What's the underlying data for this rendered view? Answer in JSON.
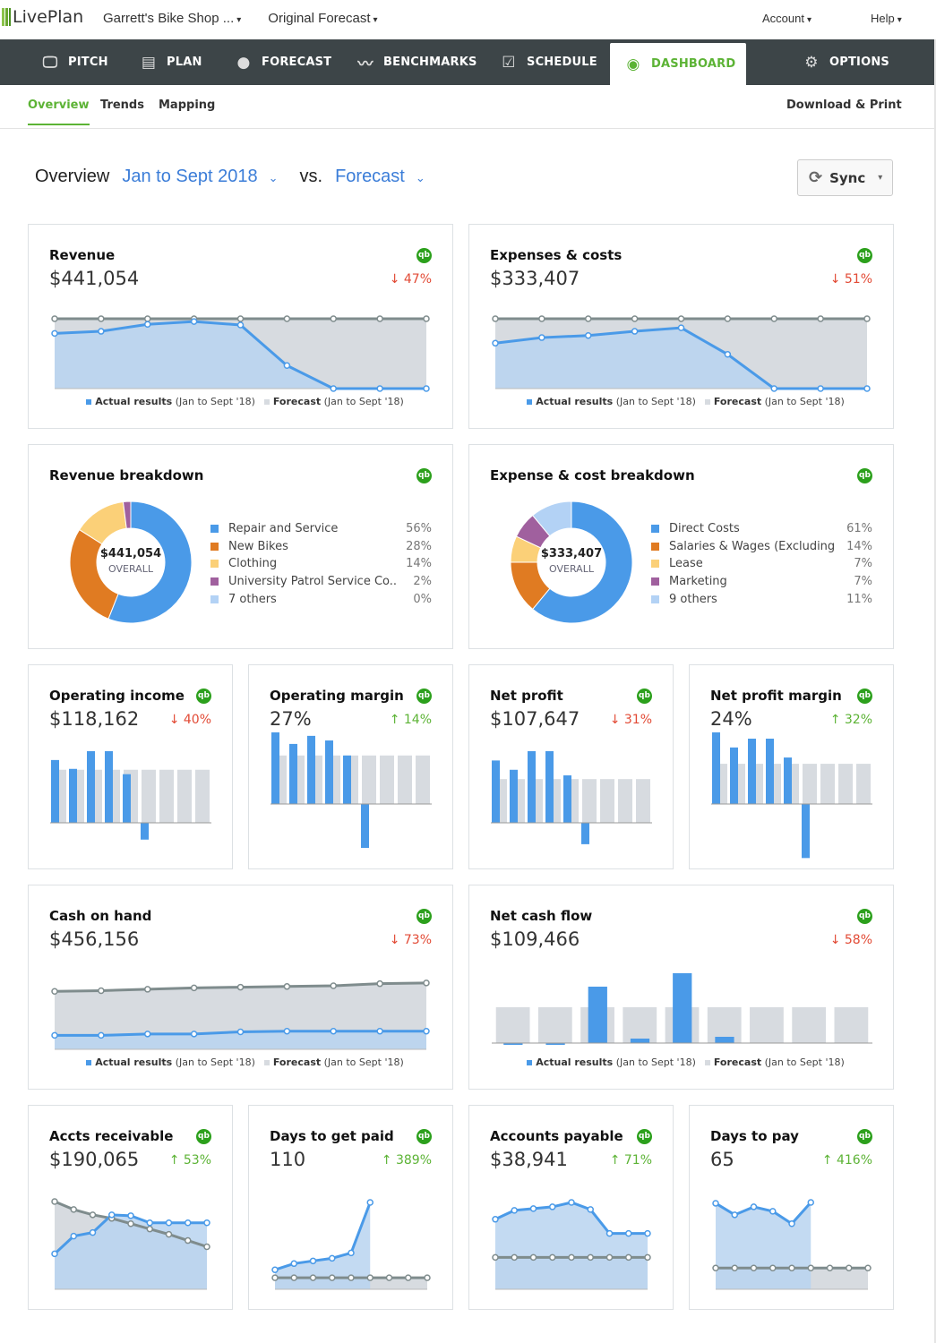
{
  "brand": "LivePlan",
  "topbar": {
    "company": "Garrett's Bike Shop ...",
    "forecast": "Original Forecast",
    "account": "Account",
    "help": "Help"
  },
  "nav": [
    {
      "label": "PITCH",
      "icon": "monitor-icon",
      "glyph": "🖵"
    },
    {
      "label": "PLAN",
      "icon": "document-icon",
      "glyph": "▤"
    },
    {
      "label": "FORECAST",
      "icon": "piggy-bank-icon",
      "glyph": "●"
    },
    {
      "label": "BENCHMARKS",
      "icon": "trend-icon",
      "glyph": "〰"
    },
    {
      "label": "SCHEDULE",
      "icon": "checkbox-icon",
      "glyph": "☑"
    },
    {
      "label": "DASHBOARD",
      "icon": "dashboard-icon",
      "glyph": "◉",
      "active": true
    },
    {
      "label": "OPTIONS",
      "icon": "gear-icon",
      "glyph": "⚙"
    }
  ],
  "subnav": {
    "tabs": [
      "Overview",
      "Trends",
      "Mapping"
    ],
    "active": "Overview",
    "download": "Download & Print"
  },
  "overview": {
    "label": "Overview",
    "period": "Jan to Sept 2018",
    "vs": "vs.",
    "compare": "Forecast",
    "sync": "Sync"
  },
  "colors": {
    "accent": "#5cb335",
    "actual": "#4a9ae8",
    "actual_fill": "#b9d4f0",
    "forecast_fill": "#d7dbe0",
    "forecast_line": "#7f8c8d",
    "down": "#e24a35",
    "up": "#5cb335"
  },
  "legend": {
    "actual": "Actual results",
    "forecast": "Forecast",
    "period": "(Jan to Sept '18)"
  },
  "cards": [
    {
      "title": "Revenue",
      "value": "$441,054",
      "change": {
        "dir": "down",
        "pct": "47%"
      },
      "chart": {
        "type": "line",
        "max": 100,
        "forecast": [
          100,
          100,
          100,
          100,
          100,
          100,
          100,
          100,
          100
        ],
        "actual": [
          79,
          82,
          92,
          96,
          91,
          33,
          0,
          0,
          0
        ]
      },
      "legend": true
    },
    {
      "title": "Expenses & costs",
      "value": "$333,407",
      "change": {
        "dir": "down",
        "pct": "51%"
      },
      "chart": {
        "type": "line",
        "max": 100,
        "forecast": [
          100,
          100,
          100,
          100,
          100,
          100,
          100,
          100,
          100
        ],
        "actual": [
          65,
          73,
          76,
          82,
          87,
          49,
          0,
          0,
          0
        ]
      },
      "legend": true
    },
    {
      "title": "Revenue breakdown",
      "chart": {
        "type": "donut",
        "total": "$441,054",
        "center_label": "OVERALL",
        "slices": [
          {
            "name": "Repair and Service",
            "pct": 56,
            "color": "#4a9ae8"
          },
          {
            "name": "New Bikes",
            "pct": 28,
            "color": "#e07b22"
          },
          {
            "name": "Clothing",
            "pct": 14,
            "color": "#fbd078"
          },
          {
            "name": "University Patrol Service Co...",
            "pct": 2,
            "color": "#a0609e"
          },
          {
            "name": "7 others",
            "pct": 0,
            "color": "#b3d2f5"
          }
        ]
      }
    },
    {
      "title": "Expense & cost breakdown",
      "chart": {
        "type": "donut",
        "total": "$333,407",
        "center_label": "OVERALL",
        "slices": [
          {
            "name": "Direct Costs",
            "pct": 61,
            "color": "#4a9ae8"
          },
          {
            "name": "Salaries & Wages (Excluding ...",
            "pct": 14,
            "color": "#e07b22"
          },
          {
            "name": "Lease",
            "pct": 7,
            "color": "#fbd078"
          },
          {
            "name": "Marketing",
            "pct": 7,
            "color": "#a0609e"
          },
          {
            "name": "9 others",
            "pct": 11,
            "color": "#b3d2f5"
          }
        ]
      }
    },
    {
      "title": "Operating income",
      "value": "$118,162",
      "change": {
        "dir": "down",
        "pct": "40%"
      },
      "chart": {
        "type": "bar",
        "forecast": [
          60,
          60,
          60,
          60,
          60,
          60,
          60,
          60,
          60
        ],
        "actual": [
          71,
          61,
          81,
          81,
          55,
          -19
        ]
      }
    },
    {
      "title": "Operating margin",
      "value": "27%",
      "change": {
        "dir": "up",
        "pct": "14%"
      },
      "chart": {
        "type": "bar",
        "forecast": [
          42,
          42,
          42,
          42,
          42,
          42,
          42,
          42,
          42
        ],
        "actual": [
          62,
          52,
          59,
          55,
          42,
          -38
        ]
      }
    },
    {
      "title": "Net profit",
      "value": "$107,647",
      "change": {
        "dir": "down",
        "pct": "31%"
      },
      "chart": {
        "type": "bar",
        "forecast": [
          47,
          47,
          47,
          47,
          47,
          47,
          47,
          47,
          47
        ],
        "actual": [
          67,
          57,
          77,
          77,
          51,
          -23
        ]
      }
    },
    {
      "title": "Net profit margin",
      "value": "24%",
      "change": {
        "dir": "up",
        "pct": "32%"
      },
      "chart": {
        "type": "bar",
        "forecast": [
          32,
          32,
          32,
          32,
          32,
          32,
          32,
          32,
          32
        ],
        "actual": [
          57,
          45,
          52,
          52,
          37,
          -43
        ]
      }
    },
    {
      "title": "Cash on hand",
      "value": "$456,156",
      "change": {
        "dir": "down",
        "pct": "73%"
      },
      "chart": {
        "type": "line",
        "max": 100,
        "forecast": [
          83,
          84,
          86,
          88,
          89,
          90,
          91,
          94,
          95
        ],
        "actual": [
          20,
          20,
          22,
          22,
          25,
          26,
          26,
          26,
          26
        ]
      },
      "legend": true
    },
    {
      "title": "Net cash flow",
      "value": "$109,466",
      "change": {
        "dir": "down",
        "pct": "58%"
      },
      "chart": {
        "type": "bar",
        "wide": true,
        "forecast": [
          40,
          40,
          40,
          40,
          40,
          40,
          40,
          40,
          40
        ],
        "actual": [
          -1,
          -1,
          63,
          5,
          78,
          7
        ]
      },
      "legend": true
    },
    {
      "title": "Accts receivable",
      "value": "$190,065",
      "change": {
        "dir": "up",
        "pct": "53%"
      },
      "chart": {
        "type": "line",
        "max": 100,
        "forecast": [
          99,
          90,
          84,
          80,
          74,
          68,
          62,
          55,
          48
        ],
        "actual": [
          40,
          60,
          64,
          84,
          83,
          75,
          75,
          75,
          75
        ]
      }
    },
    {
      "title": "Days to get paid",
      "value": "110",
      "change": {
        "dir": "up",
        "pct": "389%"
      },
      "chart": {
        "type": "line",
        "max": 100,
        "forecast": [
          13,
          13,
          13,
          13,
          13,
          13,
          13,
          13,
          13
        ],
        "actual": [
          22,
          29,
          32,
          35,
          41,
          98
        ]
      }
    },
    {
      "title": "Accounts payable",
      "value": "$38,941",
      "change": {
        "dir": "up",
        "pct": "71%"
      },
      "chart": {
        "type": "line",
        "max": 100,
        "forecast": [
          36,
          36,
          36,
          36,
          36,
          36,
          36,
          36,
          36
        ],
        "actual": [
          79,
          89,
          91,
          93,
          98,
          90,
          63,
          63,
          63
        ]
      }
    },
    {
      "title": "Days to pay",
      "value": "65",
      "change": {
        "dir": "up",
        "pct": "416%"
      },
      "chart": {
        "type": "line",
        "max": 100,
        "forecast": [
          24,
          24,
          24,
          24,
          24,
          24,
          24,
          24,
          24
        ],
        "actual": [
          97,
          84,
          93,
          88,
          74,
          98
        ]
      }
    }
  ]
}
